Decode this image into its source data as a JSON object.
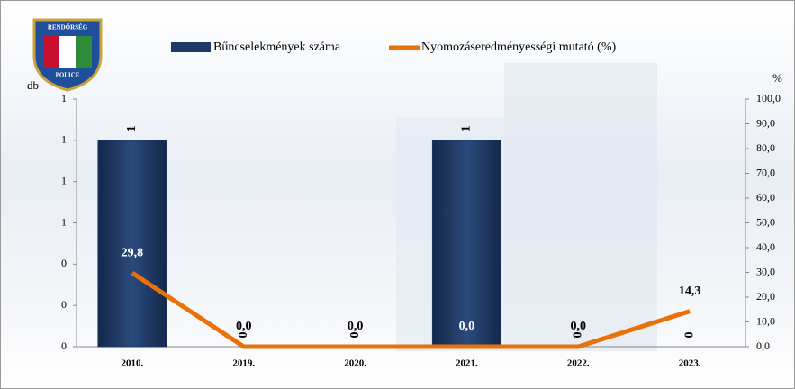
{
  "logo": {
    "top": "RENDŐRSÉG",
    "bottom": "POLICE"
  },
  "chart_data": {
    "type": "bar_line",
    "categories": [
      "2010.",
      "2019.",
      "2020.",
      "2021.",
      "2022.",
      "2023."
    ],
    "ylabel": "db",
    "y2label": "%",
    "ylim": [
      0,
      1.2
    ],
    "yticks": [
      0,
      {
        "value": 0.2,
        "label": "0"
      },
      {
        "value": 0.4,
        "label": "0"
      },
      {
        "value": 0.6,
        "label": "1"
      },
      {
        "value": 0.8,
        "label": "1"
      },
      1,
      {
        "value": 1.2,
        "label": "1"
      }
    ],
    "y2lim": [
      0,
      100
    ],
    "y2ticks": [
      {
        "value": 0,
        "label": "0,0"
      },
      {
        "value": 10,
        "label": "10,0"
      },
      {
        "value": 20,
        "label": "20,0"
      },
      {
        "value": 30,
        "label": "30,0"
      },
      {
        "value": 40,
        "label": "40,0"
      },
      {
        "value": 50,
        "label": "50,0"
      },
      {
        "value": 60,
        "label": "60,0"
      },
      {
        "value": 70,
        "label": "70,0"
      },
      {
        "value": 80,
        "label": "80,0"
      },
      {
        "value": 90,
        "label": "90,0"
      },
      {
        "value": 100,
        "label": "100,0"
      }
    ],
    "series": [
      {
        "name": "Bűncselekmények száma",
        "type": "bar",
        "color": "#1f3864",
        "values": [
          1,
          0,
          0,
          1,
          0,
          0
        ]
      },
      {
        "name": "Nyomozáseredményességi mutató (%)",
        "type": "line",
        "axis": "y2",
        "color": "#e8710a",
        "values": [
          29.8,
          0,
          0,
          0,
          0,
          14.3
        ],
        "value_labels": [
          "29,8",
          "0,0",
          "0,0",
          "0,0",
          "0,0",
          "14,3"
        ]
      }
    ]
  }
}
